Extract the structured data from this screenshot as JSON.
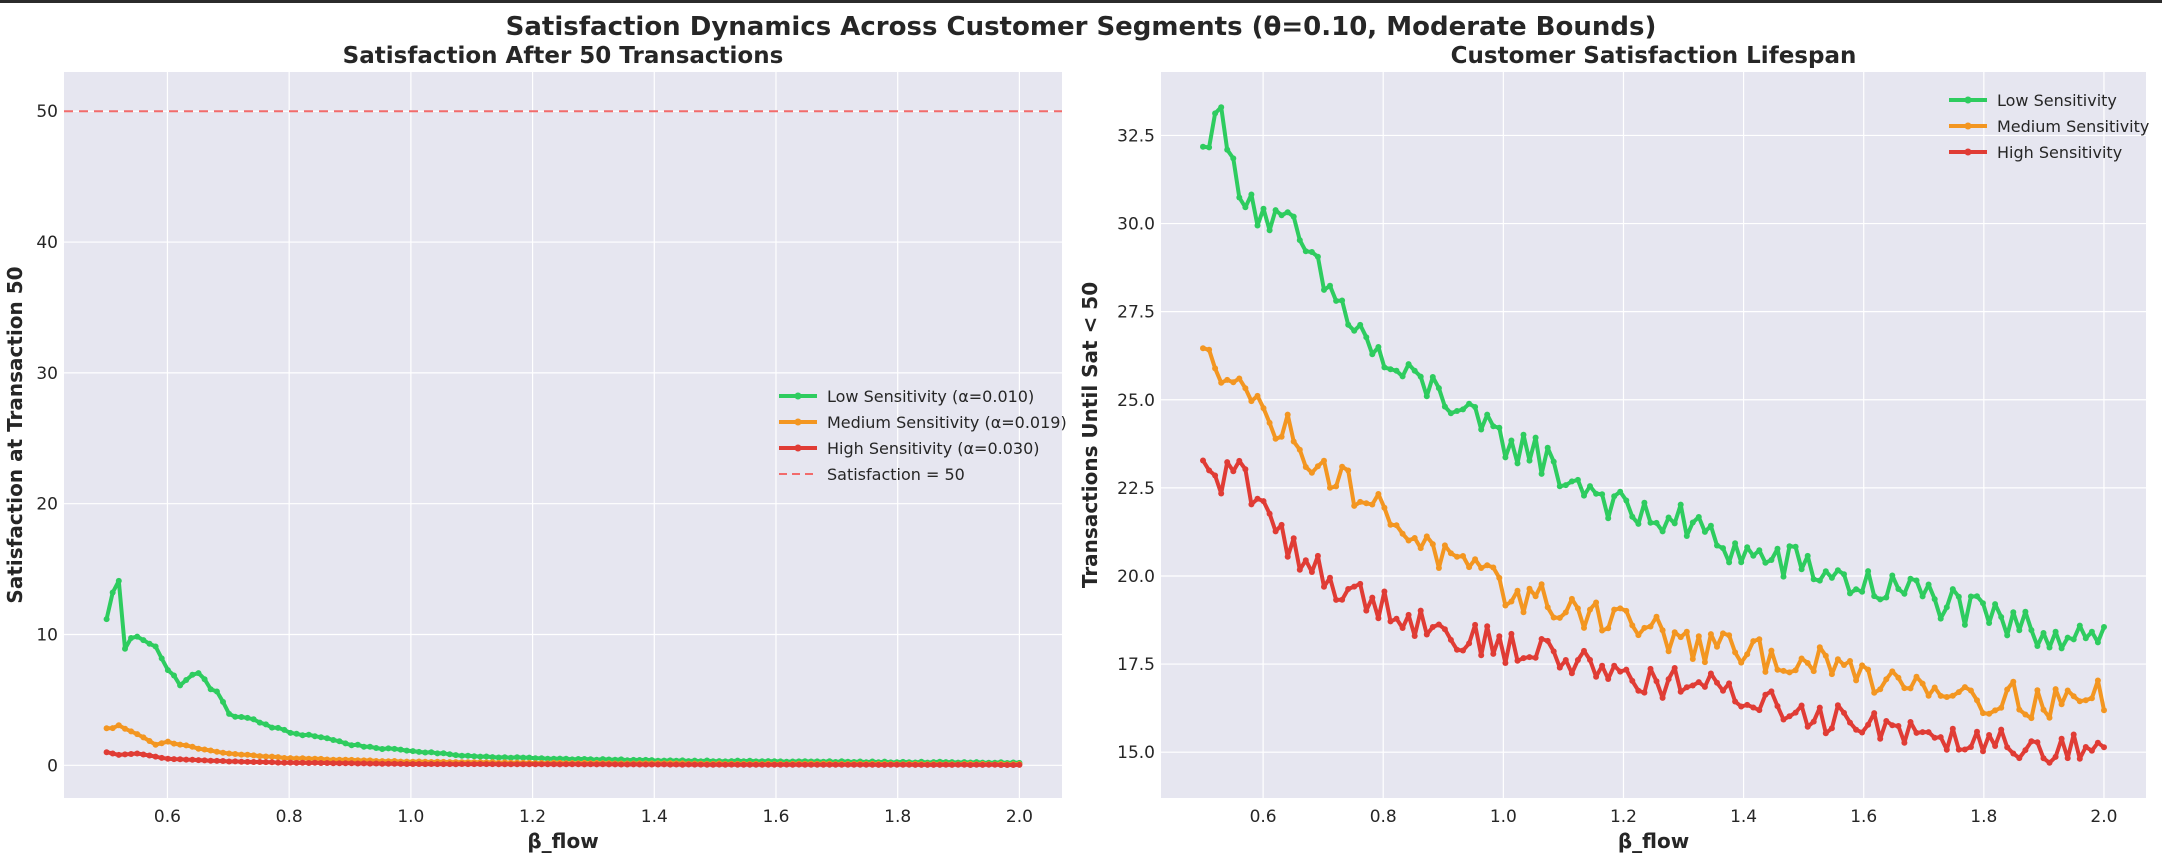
{
  "suptitle": "Satisfaction Dynamics Across Customer Segments (θ=0.10, Moderate Bounds)",
  "colors": {
    "low": "#2ecc5f",
    "medium": "#f39621",
    "high": "#e03c35",
    "reference": "#f26b6b",
    "plot_bg": "#e6e6f0",
    "grid": "#ffffff"
  },
  "chart_data": [
    {
      "type": "line",
      "title": "Satisfaction After 50 Transactions",
      "xlabel": "β_flow",
      "ylabel": "Satisfaction at Transaction 50",
      "xlim": [
        0.43,
        2.07
      ],
      "ylim": [
        -2.5,
        53
      ],
      "xticks": [
        "0.6",
        "0.8",
        "1.0",
        "1.2",
        "1.4",
        "1.6",
        "1.8",
        "2.0"
      ],
      "yticks": [
        "0",
        "10",
        "20",
        "30",
        "40",
        "50"
      ],
      "legend_position": "center-right",
      "reference_line": {
        "label": "Satisfaction = 50",
        "y": 50,
        "style": "dashed"
      },
      "x_start": 0.5,
      "x_end": 2.0,
      "series": [
        {
          "name": "Low Sensitivity (α=0.010)",
          "color_key": "low",
          "anchors": [
            [
              0.5,
              11.0
            ],
            [
              0.51,
              13.5
            ],
            [
              0.52,
              13.9
            ],
            [
              0.53,
              9.0
            ],
            [
              0.55,
              10.0
            ],
            [
              0.58,
              9.3
            ],
            [
              0.6,
              7.2
            ],
            [
              0.62,
              6.3
            ],
            [
              0.65,
              7.0
            ],
            [
              0.68,
              5.6
            ],
            [
              0.7,
              4.0
            ],
            [
              0.75,
              3.3
            ],
            [
              0.8,
              2.5
            ],
            [
              0.85,
              2.2
            ],
            [
              0.9,
              1.6
            ],
            [
              0.95,
              1.3
            ],
            [
              1.0,
              1.1
            ],
            [
              1.05,
              0.9
            ],
            [
              1.1,
              0.7
            ],
            [
              1.2,
              0.55
            ],
            [
              1.3,
              0.45
            ],
            [
              1.4,
              0.38
            ],
            [
              1.6,
              0.3
            ],
            [
              1.8,
              0.25
            ],
            [
              2.0,
              0.2
            ]
          ],
          "noise": 0.45
        },
        {
          "name": "Medium Sensitivity (α=0.019)",
          "color_key": "medium",
          "anchors": [
            [
              0.5,
              2.8
            ],
            [
              0.52,
              3.0
            ],
            [
              0.55,
              2.4
            ],
            [
              0.58,
              1.6
            ],
            [
              0.6,
              1.8
            ],
            [
              0.65,
              1.3
            ],
            [
              0.7,
              0.9
            ],
            [
              0.8,
              0.55
            ],
            [
              0.9,
              0.4
            ],
            [
              1.0,
              0.28
            ],
            [
              1.2,
              0.18
            ],
            [
              1.5,
              0.12
            ],
            [
              2.0,
              0.08
            ]
          ],
          "noise": 0.25
        },
        {
          "name": "High Sensitivity (α=0.030)",
          "color_key": "high",
          "anchors": [
            [
              0.5,
              1.0
            ],
            [
              0.52,
              0.8
            ],
            [
              0.55,
              0.9
            ],
            [
              0.6,
              0.5
            ],
            [
              0.7,
              0.3
            ],
            [
              0.8,
              0.2
            ],
            [
              1.0,
              0.1
            ],
            [
              1.5,
              0.05
            ],
            [
              2.0,
              0.03
            ]
          ],
          "noise": 0.12
        }
      ]
    },
    {
      "type": "line",
      "title": "Customer Satisfaction Lifespan",
      "xlabel": "β_flow",
      "ylabel": "Transactions Until Sat < 50",
      "xlim": [
        0.43,
        2.07
      ],
      "ylim": [
        13.7,
        34.3
      ],
      "xticks": [
        "0.6",
        "0.8",
        "1.0",
        "1.2",
        "1.4",
        "1.6",
        "1.8",
        "2.0"
      ],
      "yticks": [
        "15.0",
        "17.5",
        "20.0",
        "22.5",
        "25.0",
        "27.5",
        "30.0",
        "32.5"
      ],
      "legend_position": "top-right",
      "x_start": 0.5,
      "x_end": 2.0,
      "series": [
        {
          "name": "Low Sensitivity",
          "color_key": "low",
          "anchors": [
            [
              0.5,
              31.9
            ],
            [
              0.52,
              33.5
            ],
            [
              0.55,
              31.5
            ],
            [
              0.6,
              30.2
            ],
            [
              0.65,
              29.8
            ],
            [
              0.7,
              28.3
            ],
            [
              0.75,
              27.2
            ],
            [
              0.8,
              26.0
            ],
            [
              0.85,
              25.5
            ],
            [
              0.9,
              25.2
            ],
            [
              0.95,
              24.3
            ],
            [
              1.0,
              23.8
            ],
            [
              1.05,
              23.6
            ],
            [
              1.1,
              22.8
            ],
            [
              1.15,
              22.5
            ],
            [
              1.2,
              21.8
            ],
            [
              1.3,
              21.5
            ],
            [
              1.4,
              20.6
            ],
            [
              1.5,
              20.3
            ],
            [
              1.6,
              19.7
            ],
            [
              1.7,
              19.5
            ],
            [
              1.8,
              18.8
            ],
            [
              1.9,
              18.4
            ],
            [
              2.0,
              18.5
            ]
          ],
          "noise": 0.55
        },
        {
          "name": "Medium Sensitivity",
          "color_key": "medium",
          "anchors": [
            [
              0.5,
              26.2
            ],
            [
              0.53,
              25.9
            ],
            [
              0.55,
              26.0
            ],
            [
              0.6,
              24.5
            ],
            [
              0.65,
              24.0
            ],
            [
              0.7,
              23.0
            ],
            [
              0.75,
              22.5
            ],
            [
              0.8,
              21.8
            ],
            [
              0.85,
              21.2
            ],
            [
              0.9,
              20.5
            ],
            [
              1.0,
              19.6
            ],
            [
              1.1,
              19.1
            ],
            [
              1.2,
              18.8
            ],
            [
              1.3,
              18.1
            ],
            [
              1.4,
              17.8
            ],
            [
              1.5,
              17.6
            ],
            [
              1.6,
              17.2
            ],
            [
              1.7,
              17.0
            ],
            [
              1.8,
              16.6
            ],
            [
              1.9,
              16.4
            ],
            [
              2.0,
              16.6
            ]
          ],
          "noise": 0.5
        },
        {
          "name": "High Sensitivity",
          "color_key": "high",
          "anchors": [
            [
              0.5,
              23.0
            ],
            [
              0.53,
              22.6
            ],
            [
              0.55,
              23.3
            ],
            [
              0.6,
              21.8
            ],
            [
              0.65,
              20.8
            ],
            [
              0.7,
              20.0
            ],
            [
              0.75,
              19.5
            ],
            [
              0.8,
              19.2
            ],
            [
              0.85,
              18.8
            ],
            [
              0.9,
              18.4
            ],
            [
              1.0,
              18.0
            ],
            [
              1.1,
              17.7
            ],
            [
              1.2,
              17.2
            ],
            [
              1.3,
              16.9
            ],
            [
              1.4,
              16.6
            ],
            [
              1.5,
              16.1
            ],
            [
              1.6,
              15.9
            ],
            [
              1.7,
              15.6
            ],
            [
              1.8,
              15.4
            ],
            [
              1.9,
              15.2
            ],
            [
              2.0,
              15.0
            ]
          ],
          "noise": 0.5
        }
      ]
    }
  ]
}
